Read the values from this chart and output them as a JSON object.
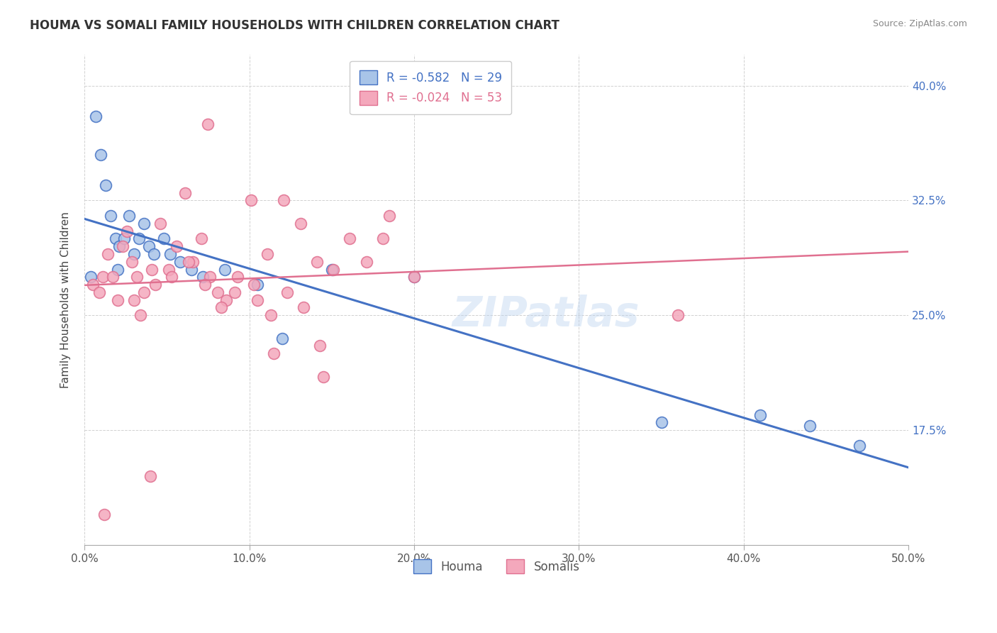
{
  "title": "HOUMA VS SOMALI FAMILY HOUSEHOLDS WITH CHILDREN CORRELATION CHART",
  "source": "Source: ZipAtlas.com",
  "ylabel": "Family Households with Children",
  "x_tick_labels": [
    "0.0%",
    "10.0%",
    "20.0%",
    "30.0%",
    "40.0%",
    "50.0%"
  ],
  "x_tick_values": [
    0,
    10,
    20,
    30,
    40,
    50
  ],
  "y_tick_labels": [
    "17.5%",
    "25.0%",
    "32.5%",
    "40.0%"
  ],
  "y_tick_values": [
    17.5,
    25.0,
    32.5,
    40.0
  ],
  "xlim": [
    0,
    50
  ],
  "ylim": [
    10,
    42
  ],
  "houma_R": "-0.582",
  "houma_N": "29",
  "somali_R": "-0.024",
  "somali_N": "53",
  "houma_color": "#a8c4e8",
  "somali_color": "#f4a8bc",
  "houma_line_color": "#4472c4",
  "somali_line_color": "#e07090",
  "legend_houma_label": "Houma",
  "legend_somali_label": "Somalis",
  "background_color": "#ffffff",
  "watermark": "ZIPatlas",
  "houma_x": [
    0.4,
    0.7,
    1.0,
    1.3,
    1.6,
    1.9,
    2.1,
    2.4,
    2.7,
    3.0,
    3.3,
    3.6,
    3.9,
    4.2,
    4.8,
    5.2,
    5.8,
    6.5,
    7.2,
    8.5,
    10.5,
    12.0,
    15.0,
    20.0,
    35.0,
    41.0,
    44.0,
    47.0,
    2.0
  ],
  "houma_y": [
    27.5,
    38.0,
    35.5,
    33.5,
    31.5,
    30.0,
    29.5,
    30.0,
    31.5,
    29.0,
    30.0,
    31.0,
    29.5,
    29.0,
    30.0,
    29.0,
    28.5,
    28.0,
    27.5,
    28.0,
    27.0,
    23.5,
    28.0,
    27.5,
    18.0,
    18.5,
    17.8,
    16.5,
    28.0
  ],
  "somali_x": [
    0.5,
    0.9,
    1.1,
    1.4,
    1.7,
    2.0,
    2.3,
    2.6,
    2.9,
    3.2,
    3.6,
    4.1,
    4.6,
    5.1,
    5.6,
    6.1,
    6.6,
    7.1,
    7.6,
    8.1,
    8.6,
    9.1,
    10.1,
    11.1,
    12.1,
    13.1,
    14.1,
    15.1,
    16.1,
    17.1,
    18.1,
    3.0,
    3.4,
    4.3,
    5.3,
    6.3,
    7.3,
    8.3,
    9.3,
    10.3,
    11.3,
    12.3,
    13.3,
    14.3,
    36.0,
    20.0,
    4.0,
    1.2,
    7.5,
    11.5,
    14.5,
    10.5,
    18.5
  ],
  "somali_y": [
    27.0,
    26.5,
    27.5,
    29.0,
    27.5,
    26.0,
    29.5,
    30.5,
    28.5,
    27.5,
    26.5,
    28.0,
    31.0,
    28.0,
    29.5,
    33.0,
    28.5,
    30.0,
    27.5,
    26.5,
    26.0,
    26.5,
    32.5,
    29.0,
    32.5,
    31.0,
    28.5,
    28.0,
    30.0,
    28.5,
    30.0,
    26.0,
    25.0,
    27.0,
    27.5,
    28.5,
    27.0,
    25.5,
    27.5,
    27.0,
    25.0,
    26.5,
    25.5,
    23.0,
    25.0,
    27.5,
    14.5,
    12.0,
    37.5,
    22.5,
    21.0,
    26.0,
    31.5
  ]
}
